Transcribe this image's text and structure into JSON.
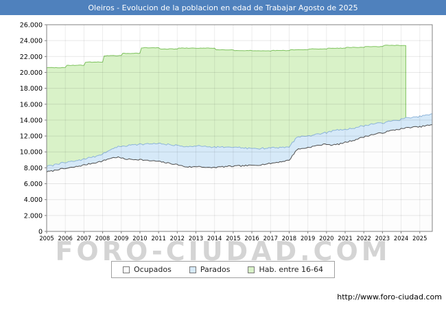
{
  "chart_data": {
    "type": "area",
    "title": "Oleiros - Evolucion de la poblacion en edad de Trabajar Agosto de 2025",
    "xlabel": "",
    "ylabel": "",
    "ylim": [
      0,
      26000
    ],
    "y_tick_step": 2000,
    "x_start": 2005,
    "x_end": 2025.67,
    "x_tick_labels": [
      "2005",
      "2006",
      "2007",
      "2008",
      "2009",
      "2010",
      "2011",
      "2012",
      "2013",
      "2014",
      "2015",
      "2016",
      "2017",
      "2018",
      "2019",
      "2020",
      "2021",
      "2022",
      "2023",
      "2024",
      "2025"
    ],
    "grid": true,
    "legend_position": "bottom-center",
    "series": [
      {
        "name": "Hab. entre 16-64",
        "render": "step-area",
        "stack": "independent",
        "fill": "#d9f2c8",
        "line": "#7fc35f",
        "x": [
          2005,
          2006,
          2007,
          2008,
          2009,
          2010,
          2011,
          2012,
          2013,
          2014,
          2015,
          2016,
          2017,
          2018,
          2019,
          2020,
          2021,
          2022,
          2023
        ],
        "values": [
          20600,
          20900,
          21300,
          22100,
          22400,
          23100,
          22950,
          23050,
          23050,
          22850,
          22750,
          22700,
          22750,
          22850,
          22950,
          23050,
          23150,
          23250,
          23400
        ],
        "series_end_x": 2024.25
      },
      {
        "name": "Parados",
        "render": "area",
        "stack": "stacked-on-ocupados",
        "fill": "#d6e9f8",
        "line": "#8db4d9",
        "x": [
          2005,
          2006,
          2007,
          2008,
          2008.5,
          2009,
          2009.5,
          2010,
          2010.5,
          2011,
          2011.5,
          2012,
          2012.5,
          2013,
          2013.5,
          2014,
          2014.5,
          2015,
          2015.5,
          2016,
          2016.5,
          2017,
          2017.5,
          2018,
          2018.5,
          2019,
          2019.5,
          2020,
          2020.3,
          2020.8,
          2021,
          2021.5,
          2022,
          2022.5,
          2023,
          2023.5,
          2024,
          2024.5,
          2025,
          2025.67
        ],
        "values": [
          700,
          750,
          750,
          850,
          1100,
          1500,
          1800,
          1950,
          2100,
          2200,
          2300,
          2450,
          2550,
          2600,
          2650,
          2550,
          2450,
          2350,
          2250,
          2150,
          2050,
          1950,
          1850,
          1700,
          1550,
          1450,
          1400,
          1450,
          1800,
          1750,
          1650,
          1500,
          1400,
          1300,
          1250,
          1200,
          1200,
          1250,
          1300,
          1350
        ]
      },
      {
        "name": "Ocupados",
        "render": "area",
        "stack": "base",
        "fill": "#fdfdfd",
        "line": "#4d4d4d",
        "x": [
          2005,
          2005.3,
          2005.6,
          2006,
          2006.5,
          2007,
          2007.5,
          2008,
          2008.4,
          2008.8,
          2009.2,
          2009.6,
          2010,
          2010.4,
          2010.8,
          2011,
          2011.5,
          2012,
          2012.4,
          2012.8,
          2013.2,
          2013.6,
          2014,
          2014.5,
          2015,
          2015.5,
          2016,
          2016.5,
          2017,
          2017.5,
          2018,
          2018.2,
          2018.4,
          2019,
          2019.5,
          2020,
          2020.3,
          2020.7,
          2021,
          2021.5,
          2022,
          2022.5,
          2023,
          2023.5,
          2024,
          2024.5,
          2025,
          2025.3,
          2025.67
        ],
        "values": [
          7500,
          7600,
          7800,
          7900,
          8100,
          8350,
          8600,
          8850,
          9200,
          9350,
          9100,
          9050,
          9050,
          8900,
          8850,
          8800,
          8600,
          8400,
          8150,
          8100,
          8200,
          8000,
          8050,
          8150,
          8200,
          8250,
          8300,
          8400,
          8550,
          8750,
          8950,
          9600,
          10300,
          10550,
          10800,
          11000,
          10850,
          11000,
          11200,
          11500,
          11900,
          12200,
          12400,
          12700,
          12900,
          13100,
          13150,
          13300,
          13400
        ]
      }
    ]
  },
  "title_bar": {
    "background": "#4f81bd",
    "text_color": "#ffffff"
  },
  "legend": {
    "items": [
      {
        "label": "Ocupados",
        "fill": "#fdfdfd"
      },
      {
        "label": "Parados",
        "fill": "#d6e9f8"
      },
      {
        "label": "Hab. entre 16-64",
        "fill": "#d9f2c8"
      }
    ]
  },
  "watermark": {
    "text": "FORO-CIUDAD.COM"
  },
  "footer": {
    "url": "http://www.foro-ciudad.com"
  }
}
